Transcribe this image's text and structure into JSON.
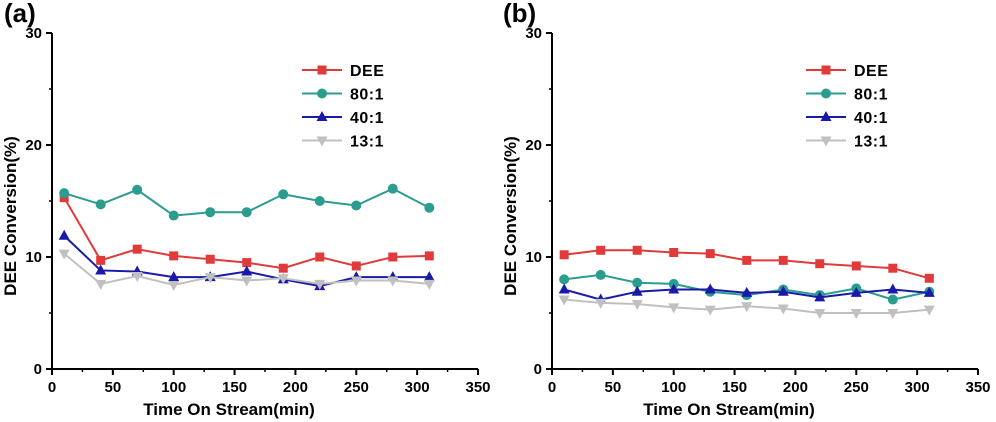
{
  "chart_data": [
    {
      "type": "line",
      "panel_label": "(a)",
      "xlabel": "Time On Stream(min)",
      "ylabel": "DEE Conversion(%)",
      "xlim": [
        0,
        350
      ],
      "ylim": [
        0,
        30
      ],
      "xticks": [
        "0",
        "50",
        "100",
        "150",
        "200",
        "250",
        "300",
        "350"
      ],
      "yticks": [
        "0",
        "10",
        "20",
        "30"
      ],
      "legend_position": "top-right",
      "series": [
        {
          "name": "DEE",
          "marker": "square",
          "color": "#e03a3a",
          "x": [
            10,
            40,
            70,
            100,
            130,
            160,
            190,
            220,
            250,
            280,
            310
          ],
          "y": [
            15.3,
            9.7,
            10.7,
            10.1,
            9.8,
            9.5,
            9.0,
            10.0,
            9.2,
            10.0,
            10.1
          ]
        },
        {
          "name": "80:1",
          "marker": "circle",
          "color": "#2a9d8f",
          "x": [
            10,
            40,
            70,
            100,
            130,
            160,
            190,
            220,
            250,
            280,
            310
          ],
          "y": [
            15.7,
            14.7,
            16.0,
            13.7,
            14.0,
            14.0,
            15.6,
            15.0,
            14.6,
            16.1,
            14.4
          ]
        },
        {
          "name": "40:1",
          "marker": "triangle-up",
          "color": "#1a1aa8",
          "x": [
            10,
            40,
            70,
            100,
            130,
            160,
            190,
            220,
            250,
            280,
            310
          ],
          "y": [
            11.9,
            8.8,
            8.7,
            8.2,
            8.2,
            8.7,
            8.0,
            7.4,
            8.2,
            8.2,
            8.2
          ]
        },
        {
          "name": "13:1",
          "marker": "triangle-down",
          "color": "#c0c0c0",
          "x": [
            10,
            40,
            70,
            100,
            130,
            160,
            190,
            220,
            250,
            280,
            310
          ],
          "y": [
            10.3,
            7.6,
            8.3,
            7.5,
            8.2,
            7.9,
            8.1,
            7.6,
            7.9,
            7.9,
            7.6
          ]
        }
      ]
    },
    {
      "type": "line",
      "panel_label": "(b)",
      "xlabel": "Time On Stream(min)",
      "ylabel": "DEE Conversion(%)",
      "xlim": [
        0,
        350
      ],
      "ylim": [
        0,
        30
      ],
      "xticks": [
        "0",
        "50",
        "100",
        "150",
        "200",
        "250",
        "300",
        "350"
      ],
      "yticks": [
        "0",
        "10",
        "20",
        "30"
      ],
      "legend_position": "top-right",
      "series": [
        {
          "name": "DEE",
          "marker": "square",
          "color": "#e03a3a",
          "x": [
            10,
            40,
            70,
            100,
            130,
            160,
            190,
            220,
            250,
            280,
            310
          ],
          "y": [
            10.2,
            10.6,
            10.6,
            10.4,
            10.3,
            9.7,
            9.7,
            9.4,
            9.2,
            9.0,
            8.1
          ]
        },
        {
          "name": "80:1",
          "marker": "circle",
          "color": "#2a9d8f",
          "x": [
            10,
            40,
            70,
            100,
            130,
            160,
            190,
            220,
            250,
            280,
            310
          ],
          "y": [
            8.0,
            8.4,
            7.7,
            7.6,
            6.9,
            6.6,
            7.1,
            6.6,
            7.2,
            6.2,
            6.9
          ]
        },
        {
          "name": "40:1",
          "marker": "triangle-up",
          "color": "#1a1aa8",
          "x": [
            10,
            40,
            70,
            100,
            130,
            160,
            190,
            220,
            250,
            280,
            310
          ],
          "y": [
            7.1,
            6.2,
            6.9,
            7.1,
            7.1,
            6.8,
            6.9,
            6.4,
            6.8,
            7.1,
            6.8
          ]
        },
        {
          "name": "13:1",
          "marker": "triangle-down",
          "color": "#c0c0c0",
          "x": [
            10,
            40,
            70,
            100,
            130,
            160,
            190,
            220,
            250,
            280,
            310
          ],
          "y": [
            6.2,
            5.9,
            5.8,
            5.5,
            5.3,
            5.6,
            5.4,
            5.0,
            5.0,
            5.0,
            5.3
          ]
        }
      ]
    }
  ]
}
